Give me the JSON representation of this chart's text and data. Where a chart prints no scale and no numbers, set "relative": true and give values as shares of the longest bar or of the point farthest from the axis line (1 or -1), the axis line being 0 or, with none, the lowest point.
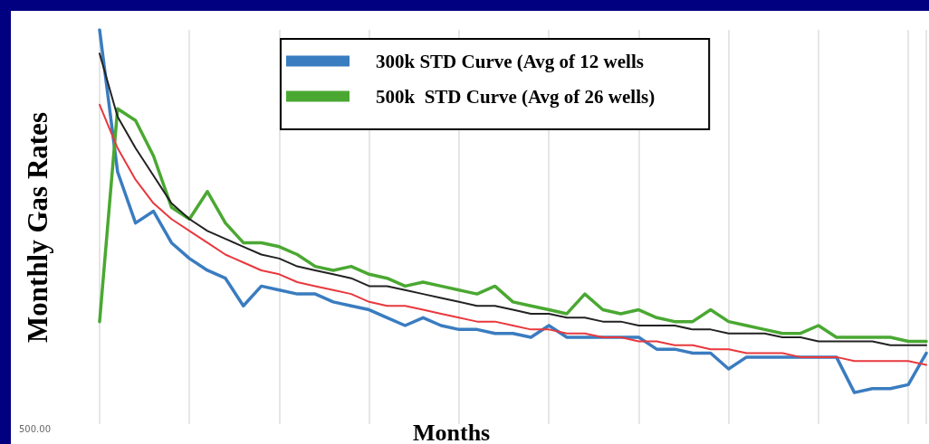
{
  "chart_data": {
    "type": "line",
    "relative": true,
    "ylabel": "Monthly Gas Rates",
    "xlabel": "Months",
    "categories": [
      null,
      null,
      null,
      null,
      null,
      null,
      null,
      null,
      null,
      null,
      null,
      null,
      null,
      null,
      null,
      null,
      null,
      null,
      null,
      null,
      null,
      null,
      null,
      null,
      null,
      null,
      null,
      null,
      null,
      null,
      null,
      null,
      null,
      null,
      null,
      null,
      null,
      null,
      null,
      null,
      null,
      null,
      null,
      null,
      null,
      null,
      null
    ],
    "series": [
      {
        "name": "300k STD Curve (Avg of 12 wells",
        "color": "#3a7cc0",
        "values": [
          1.0,
          0.64,
          0.51,
          0.54,
          0.46,
          0.42,
          0.39,
          0.37,
          0.3,
          0.35,
          0.34,
          0.33,
          0.33,
          0.31,
          0.3,
          0.29,
          0.27,
          0.25,
          0.27,
          0.25,
          0.24,
          0.24,
          0.23,
          0.23,
          0.22,
          0.25,
          0.22,
          0.22,
          0.22,
          0.22,
          0.22,
          0.19,
          0.19,
          0.18,
          0.18,
          0.14,
          0.17,
          0.17,
          0.17,
          0.17,
          0.17,
          0.17,
          0.08,
          0.09,
          0.09,
          0.1,
          0.18
        ]
      },
      {
        "name": "500k  STD Curve (Avg of 26 wells)",
        "color": "#4aa832",
        "values": [
          0.26,
          0.8,
          0.77,
          0.68,
          0.55,
          0.52,
          0.59,
          0.51,
          0.46,
          0.46,
          0.45,
          0.43,
          0.4,
          0.39,
          0.4,
          0.38,
          0.37,
          0.35,
          0.36,
          0.35,
          0.34,
          0.33,
          0.35,
          0.31,
          0.3,
          0.29,
          0.28,
          0.33,
          0.29,
          0.28,
          0.29,
          0.27,
          0.26,
          0.26,
          0.29,
          0.26,
          0.25,
          0.24,
          0.23,
          0.23,
          0.25,
          0.22,
          0.22,
          0.22,
          0.22,
          0.21,
          0.21
        ]
      },
      {
        "color": "#222222",
        "values": [
          0.94,
          0.78,
          0.7,
          0.63,
          0.56,
          0.52,
          0.49,
          0.47,
          0.45,
          0.43,
          0.42,
          0.4,
          0.39,
          0.38,
          0.37,
          0.35,
          0.35,
          0.34,
          0.33,
          0.32,
          0.31,
          0.3,
          0.3,
          0.29,
          0.28,
          0.28,
          0.27,
          0.27,
          0.26,
          0.26,
          0.25,
          0.25,
          0.25,
          0.24,
          0.24,
          0.23,
          0.23,
          0.23,
          0.22,
          0.22,
          0.21,
          0.21,
          0.21,
          0.21,
          0.2,
          0.2,
          0.2
        ]
      },
      {
        "color": "#e8383d",
        "values": [
          0.81,
          0.7,
          0.62,
          0.56,
          0.52,
          0.49,
          0.46,
          0.43,
          0.41,
          0.39,
          0.38,
          0.36,
          0.35,
          0.34,
          0.33,
          0.31,
          0.3,
          0.3,
          0.29,
          0.28,
          0.27,
          0.26,
          0.26,
          0.25,
          0.24,
          0.24,
          0.23,
          0.23,
          0.22,
          0.22,
          0.21,
          0.21,
          0.2,
          0.2,
          0.19,
          0.19,
          0.18,
          0.18,
          0.18,
          0.17,
          0.17,
          0.17,
          0.16,
          0.16,
          0.16,
          0.16,
          0.15
        ]
      }
    ],
    "annotations": [
      "500.00"
    ],
    "grid": "x",
    "legend": "top",
    "marker": "none",
    "line_style": "solid"
  }
}
